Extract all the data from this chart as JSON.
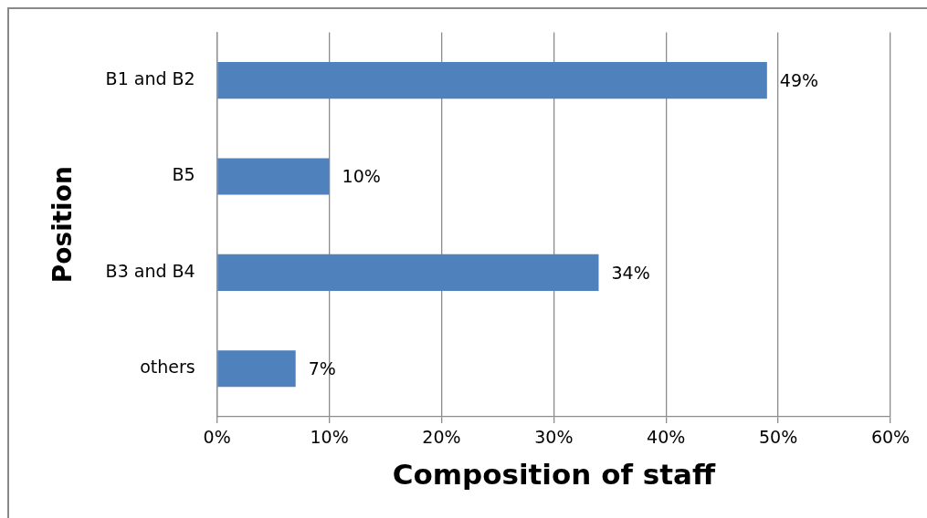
{
  "chart_data": {
    "type": "bar",
    "orientation": "horizontal",
    "categories": [
      "B1 and B2",
      "B5",
      "B3 and B4",
      "others"
    ],
    "values": [
      49,
      10,
      34,
      7
    ],
    "color": "#4f81bd",
    "value_labels": [
      "49%",
      "10%",
      "34%",
      "7%"
    ],
    "xlim": [
      0,
      60
    ],
    "xticks": [
      {
        "value": 0,
        "label": "0%"
      },
      {
        "value": 10,
        "label": "10%"
      },
      {
        "value": 20,
        "label": "20%"
      },
      {
        "value": 30,
        "label": "30%"
      },
      {
        "value": 40,
        "label": "40%"
      },
      {
        "value": 50,
        "label": "50%"
      },
      {
        "value": 60,
        "label": "60%"
      }
    ],
    "xlabel": "Composition of staff",
    "ylabel": "Position",
    "grid": "x"
  }
}
